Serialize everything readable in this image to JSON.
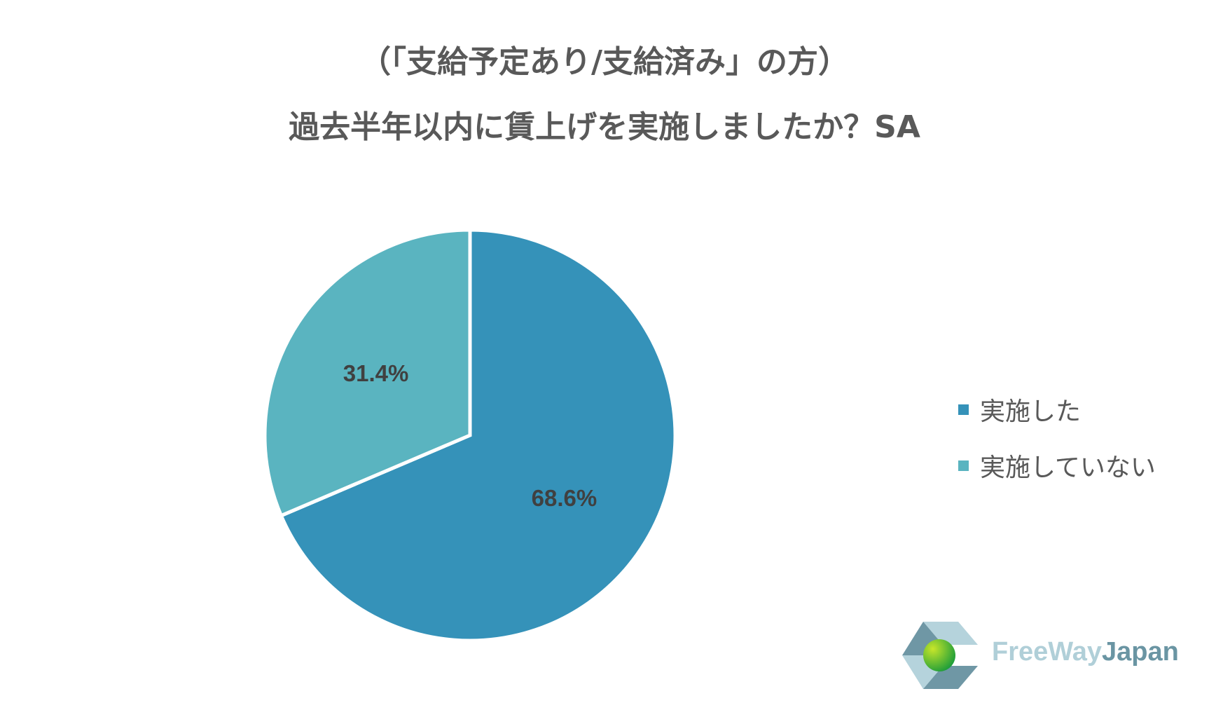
{
  "chart_data": {
    "type": "pie",
    "title": [
      "（「支給予定あり/支給済み」の方）",
      "過去半年以内に賃上げを実施しましたか？SA"
    ],
    "slices": [
      {
        "name": "実施した",
        "value": 68.6,
        "label": "68.6%",
        "color": "#3592b9"
      },
      {
        "name": "実施していない",
        "value": 31.4,
        "label": "31.4%",
        "color": "#5ab4c0"
      }
    ],
    "start_angle": "12 o'clock",
    "direction": "clockwise",
    "legend_placement": "right"
  },
  "logo": {
    "text_light": "FreeWay",
    "text_dark": "Japan"
  }
}
